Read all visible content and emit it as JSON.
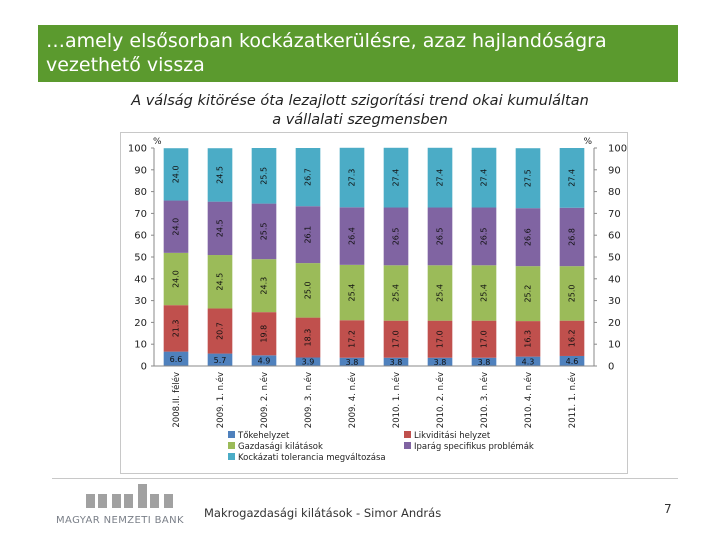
{
  "slide": {
    "title_line1": "…amely elsősorban kockázatkerülésre, azaz hajlandóságra",
    "title_line2": "vezethető vissza",
    "subtitle_line1": "A válság kitörése óta lezajlott szigorítási trend okai kumuláltan",
    "subtitle_line2": "a vállalati szegmensben",
    "footer_text": "Makrogazdasági kilátások - Simor András",
    "page_number": "7",
    "logo_text": "MAGYAR NEMZETI BANK"
  },
  "chart_data": {
    "type": "bar",
    "stacked": true,
    "ylabel_left": "%",
    "ylabel_right": "%",
    "ylim": [
      0,
      100
    ],
    "yticks": [
      0,
      10,
      20,
      30,
      40,
      50,
      60,
      70,
      80,
      90,
      100
    ],
    "categories": [
      "2008.II. félév",
      "2009. 1. n.év",
      "2009. 2. n.év",
      "2009. 3. n.év",
      "2009. 4. n.év",
      "2010. 1. n.év",
      "2010. 2. n.év",
      "2010. 3. n.év",
      "2010. 4. n.év",
      "2011. 1. n.év"
    ],
    "series": [
      {
        "name": "Tőkehelyzet",
        "color": "#4f81bd",
        "values": [
          6.6,
          5.7,
          4.9,
          3.9,
          3.8,
          3.8,
          3.8,
          3.8,
          4.3,
          4.6
        ]
      },
      {
        "name": "Likviditási helyzet",
        "color": "#c0504d",
        "values": [
          21.3,
          20.7,
          19.8,
          18.3,
          17.2,
          17.0,
          17.0,
          17.0,
          16.3,
          16.2
        ]
      },
      {
        "name": "Gazdasági kilátások",
        "color": "#9bbb59",
        "values": [
          24.0,
          24.5,
          24.3,
          25.0,
          25.4,
          25.4,
          25.4,
          25.4,
          25.2,
          25.0
        ]
      },
      {
        "name": "Iparág specifikus problémák",
        "color": "#8064a2",
        "values": [
          24.0,
          24.5,
          25.5,
          26.1,
          26.4,
          26.5,
          26.5,
          26.5,
          26.6,
          26.8
        ]
      },
      {
        "name": "Kockázati tolerancia megváltozása",
        "color": "#4bacc6",
        "values": [
          24.0,
          24.5,
          25.5,
          26.7,
          27.3,
          27.4,
          27.4,
          27.4,
          27.5,
          27.4
        ]
      }
    ],
    "legend_position": "bottom"
  }
}
